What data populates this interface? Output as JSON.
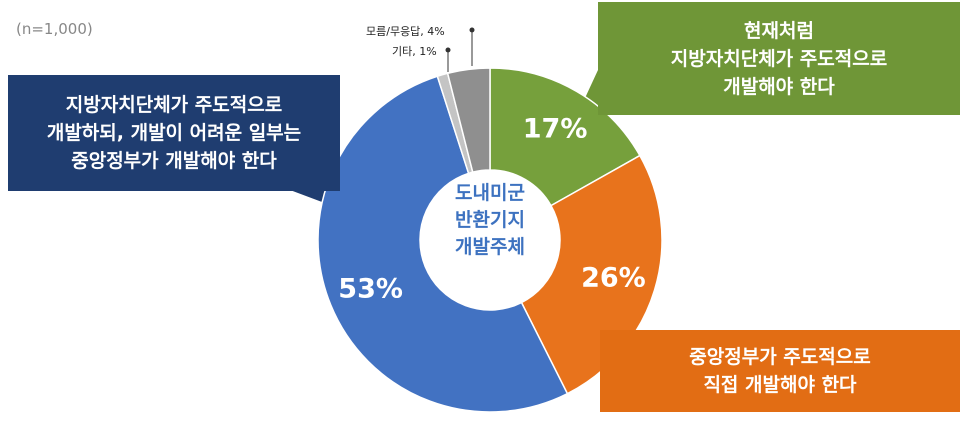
{
  "chart_data": {
    "type": "donut",
    "note": "(n=1,000)",
    "center_label": "도내미군\n반환기지\n개발주체",
    "categories": [
      "현재처럼\n지방자치단체가 주도적으로\n개발해야 한다",
      "중앙정부가 주도적으로\n직접 개발해야 한다",
      "지방자치단체가 주도적으로\n개발하되, 개발이 어려운 일부는\n중앙정부가 개발해야 한다",
      null,
      null
    ],
    "values": [
      17,
      26,
      53,
      1,
      4
    ],
    "value_labels": [
      "17%",
      "26%",
      "53%",
      "기타, 1%",
      "모름/무응답, 4%"
    ],
    "colors": [
      "#76a03c",
      "#e8731c",
      "#4272c2",
      "#c4c4c4",
      "#8f8f8f"
    ]
  }
}
